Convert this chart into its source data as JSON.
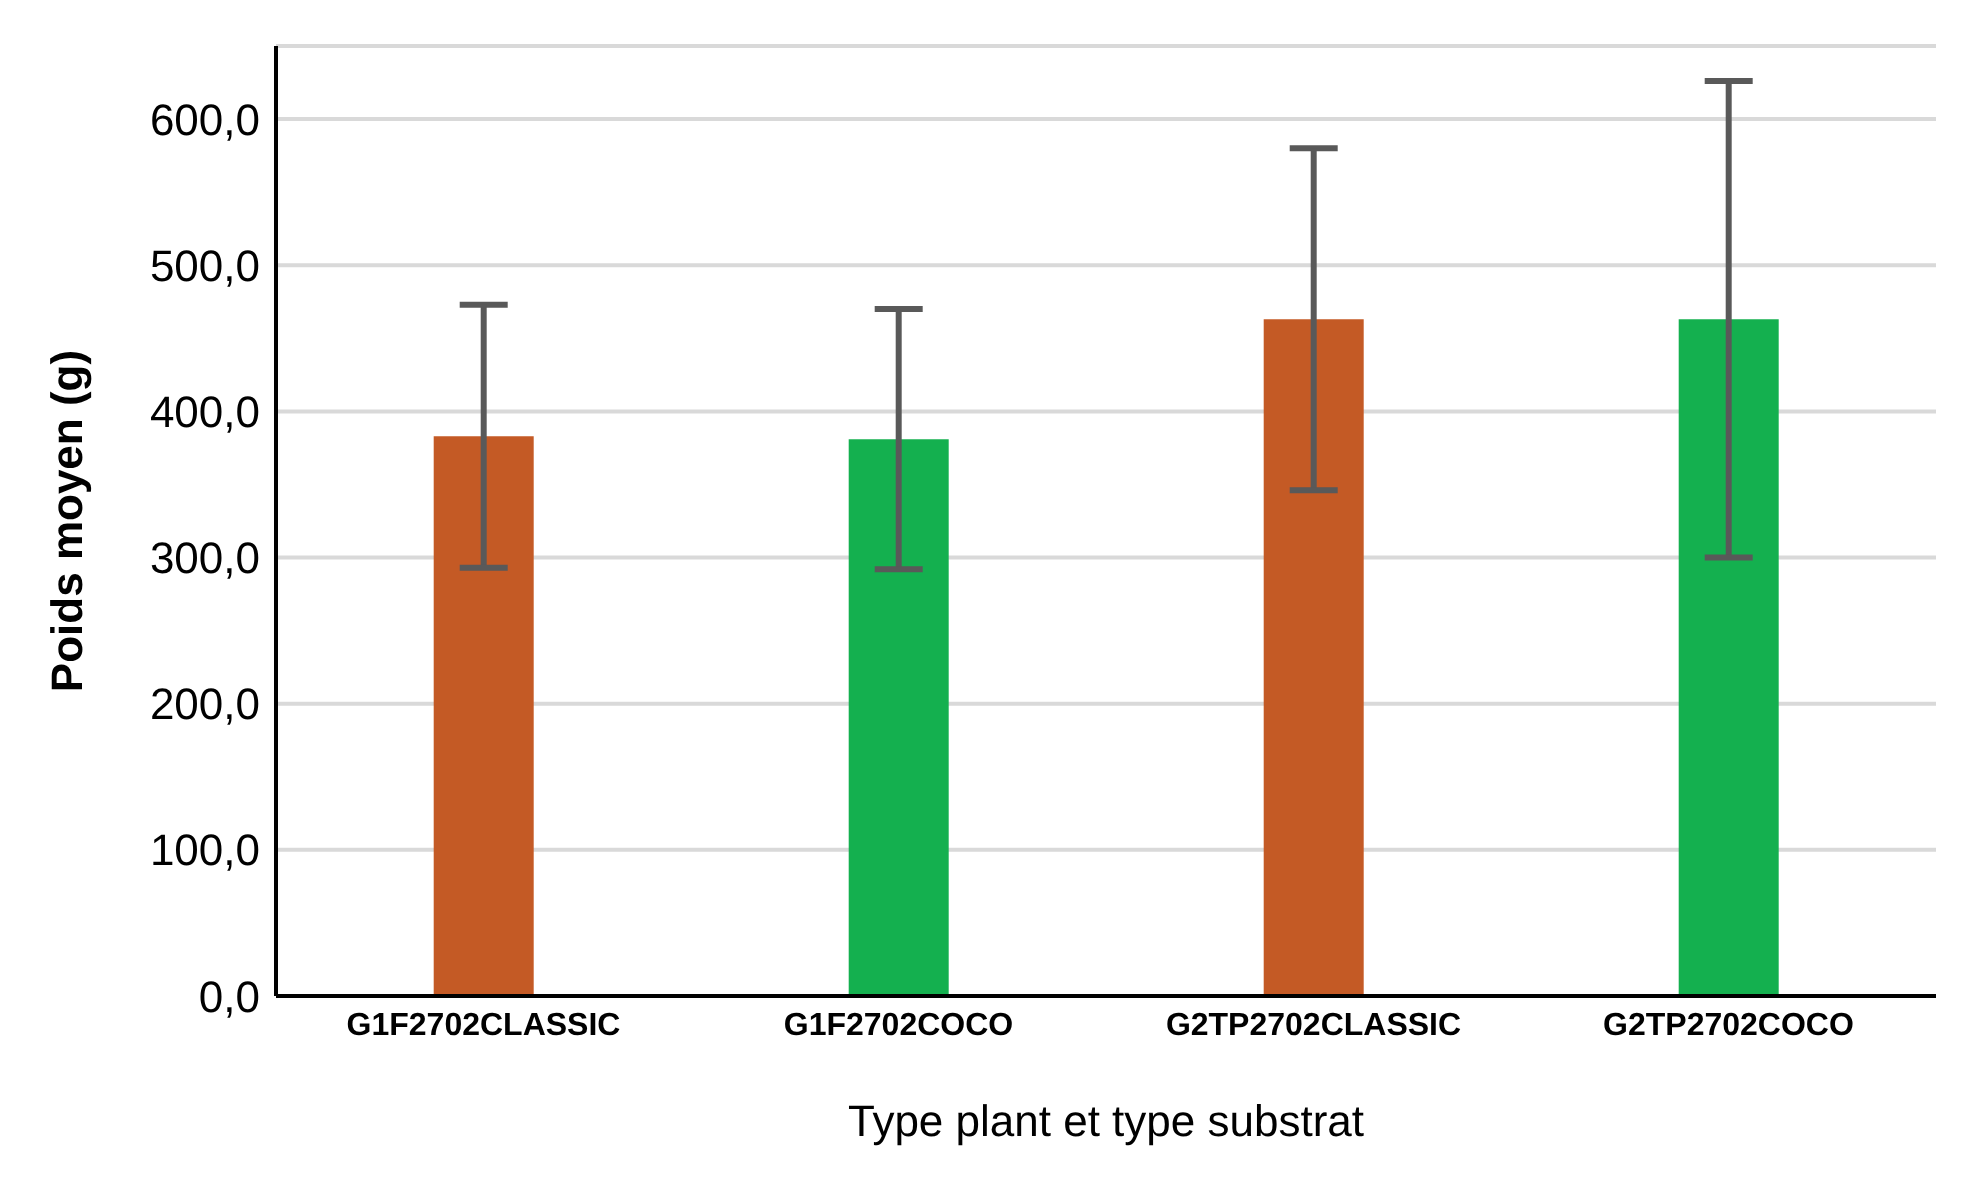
{
  "chart_data": {
    "type": "bar",
    "xlabel": "Type plant et type substrat",
    "ylabel": "Poids moyen (g)",
    "categories": [
      "G1F2702CLASSIC",
      "G1F2702COCO",
      "G2TP2702CLASSIC",
      "G2TP2702COCO"
    ],
    "values": [
      383,
      381,
      463,
      463
    ],
    "colors": [
      "#c45a25",
      "#14b04f",
      "#c45a25",
      "#14b04f"
    ],
    "errors": [
      90,
      89,
      117,
      163
    ],
    "ylim": [
      0,
      650
    ],
    "yticks": [
      {
        "value": 0,
        "label": "0,0"
      },
      {
        "value": 100,
        "label": "100,0"
      },
      {
        "value": 200,
        "label": "200,0"
      },
      {
        "value": 300,
        "label": "300,0"
      },
      {
        "value": 400,
        "label": "400,0"
      },
      {
        "value": 500,
        "label": "500,0"
      },
      {
        "value": 600,
        "label": "600,0"
      }
    ],
    "grid": "y"
  }
}
